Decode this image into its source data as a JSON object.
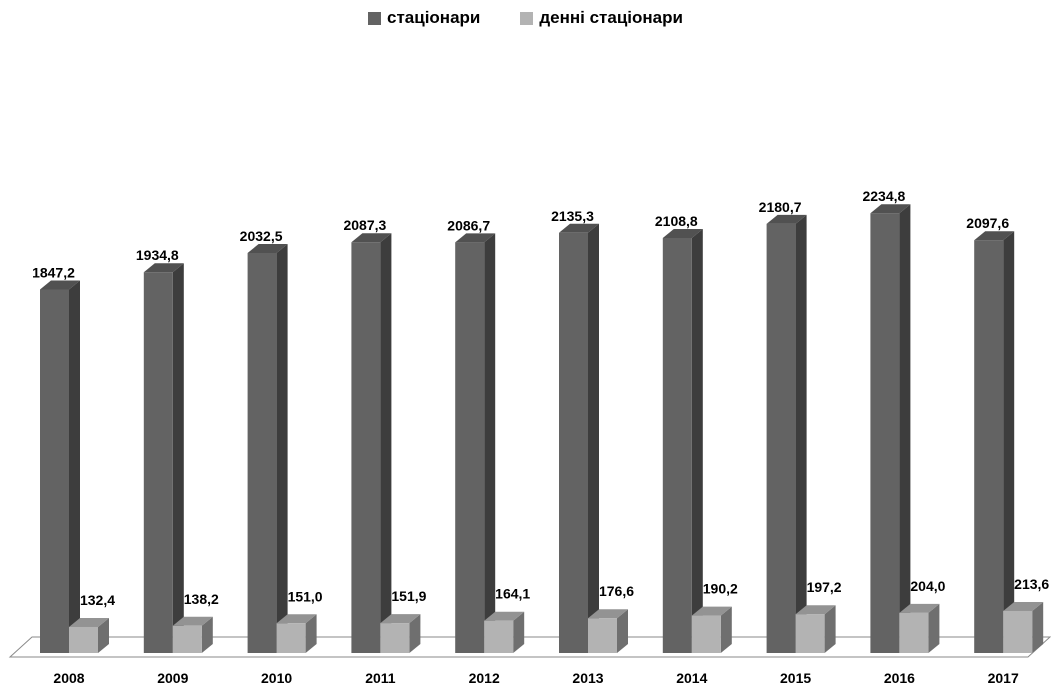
{
  "chart_data": {
    "type": "bar",
    "style": "3d-clustered-column",
    "title": "",
    "xlabel": "",
    "ylabel": "",
    "categories": [
      "2008",
      "2009",
      "2010",
      "2011",
      "2012",
      "2013",
      "2014",
      "2015",
      "2016",
      "2017"
    ],
    "series": [
      {
        "name": "стаціонари",
        "color": "#636363",
        "values": [
          1847.2,
          1934.8,
          2032.5,
          2087.3,
          2086.7,
          2135.3,
          2108.8,
          2180.7,
          2234.8,
          2097.6
        ],
        "labels": [
          "1847,2",
          "1934,8",
          "2032,5",
          "2087,3",
          "2086,7",
          "2135,3",
          "2108,8",
          "2180,7",
          "2234,8",
          "2097,6"
        ]
      },
      {
        "name": "денні стаціонари",
        "color": "#b3b3b3",
        "values": [
          132.4,
          138.2,
          151.0,
          151.9,
          164.1,
          176.6,
          190.2,
          197.2,
          204.0,
          213.6
        ],
        "labels": [
          "132,4",
          "138,2",
          "151,0",
          "151,9",
          "164,1",
          "176,6",
          "190,2",
          "197,2",
          "204,0",
          "213,6"
        ]
      }
    ],
    "ylim": [
      0,
      2400
    ],
    "grid": false,
    "legend": "top-center"
  }
}
